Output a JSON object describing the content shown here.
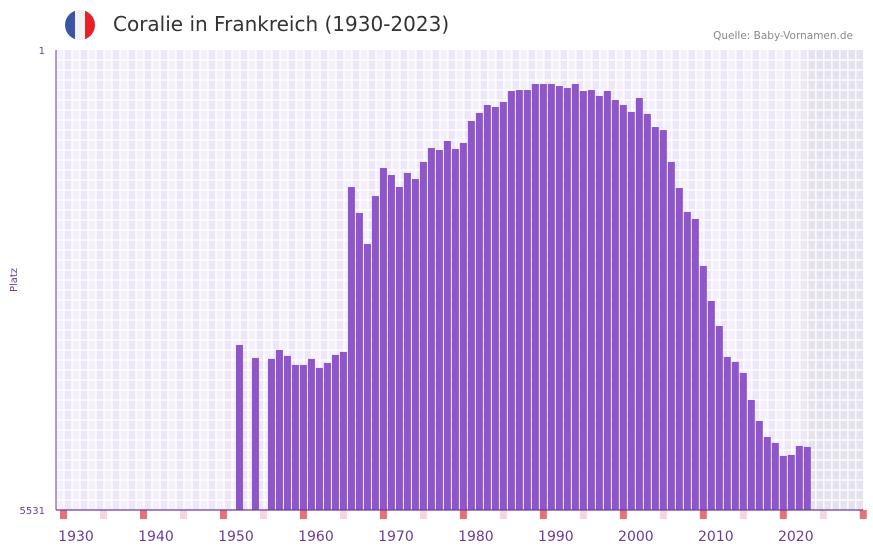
{
  "header": {
    "title": "Coralie in Frankreich (1930-2023)",
    "source": "Quelle: Baby-Vornamen.de",
    "flag_icon": "france-flag-icon",
    "flag_colors": [
      "#3a55a4",
      "#f2f2f2",
      "#e8202a"
    ]
  },
  "colors": {
    "bar": "#8e56c8",
    "axis": "#6a3d9a",
    "grid_a": "#f3effb",
    "grid_b": "#ece6f7",
    "future": "#e3dfec",
    "marker_red": "#e57373",
    "marker_pink": "#f5d6de"
  },
  "chart_data": {
    "type": "bar",
    "title": "Coralie in Frankreich (1930-2023)",
    "xlabel": "",
    "ylabel": "Platz",
    "y_inverted": true,
    "ylim": [
      1,
      5531
    ],
    "ytick_labels": [
      "1",
      "5531"
    ],
    "xlim": [
      1928.5,
      2029.4
    ],
    "xtick_labels": [
      "1930",
      "1940",
      "1950",
      "1960",
      "1970",
      "1980",
      "1990",
      "2000",
      "2010",
      "2020"
    ],
    "future_from": 2022.5,
    "years": [
      1951,
      1953,
      1955,
      1956,
      1957,
      1958,
      1959,
      1960,
      1961,
      1962,
      1963,
      1964,
      1965,
      1966,
      1967,
      1968,
      1969,
      1970,
      1971,
      1972,
      1973,
      1974,
      1975,
      1976,
      1977,
      1978,
      1979,
      1980,
      1981,
      1982,
      1983,
      1984,
      1985,
      1986,
      1987,
      1988,
      1989,
      1990,
      1991,
      1992,
      1993,
      1994,
      1995,
      1996,
      1997,
      1998,
      1999,
      2000,
      2001,
      2002,
      2003,
      2004,
      2005,
      2006,
      2007,
      2008,
      2009,
      2010,
      2011,
      2012,
      2013,
      2014,
      2015,
      2016,
      2017,
      2018,
      2019,
      2020,
      2021,
      2022
    ],
    "ranks": [
      3547,
      3703,
      3715,
      3607,
      3679,
      3787,
      3787,
      3715,
      3823,
      3763,
      3667,
      3631,
      1648,
      1960,
      2333,
      1756,
      1419,
      1504,
      1648,
      1479,
      1552,
      1347,
      1179,
      1203,
      1095,
      1191,
      1119,
      854,
      758,
      662,
      686,
      626,
      494,
      482,
      482,
      410,
      410,
      410,
      434,
      458,
      410,
      494,
      482,
      554,
      494,
      602,
      662,
      746,
      578,
      770,
      927,
      963,
      1347,
      1660,
      1948,
      2032,
      2597,
      3018,
      3319,
      3691,
      3751,
      3883,
      4208,
      4460,
      4653,
      4725,
      4881,
      4869,
      4761,
      4773
    ]
  }
}
